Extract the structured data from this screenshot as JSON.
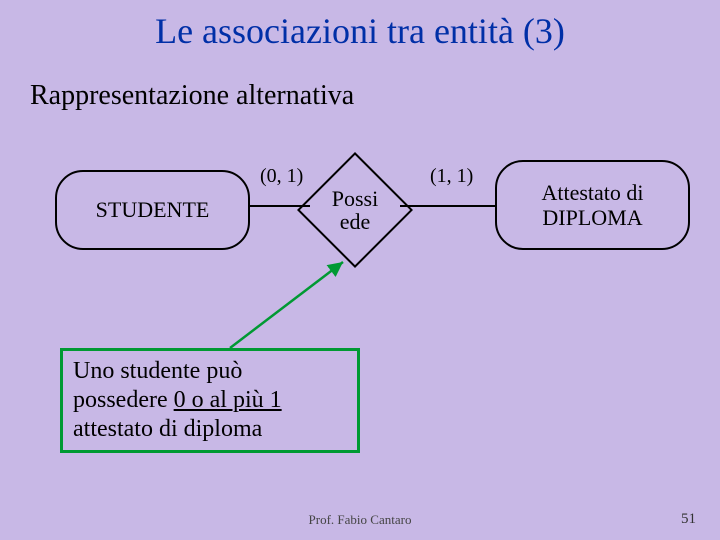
{
  "slide": {
    "background_color": "#c8b8e6",
    "title": "Le associazioni tra entità (3)",
    "title_color": "#002fa7",
    "subtitle": "Rappresentazione alternativa",
    "text_color": "#000000",
    "er": {
      "entity_left": {
        "label": "STUDENTE"
      },
      "entity_right": {
        "label": "Attestato di\nDIPLOMA"
      },
      "relationship": {
        "label": "Possi\nede"
      },
      "cardinality_left": "(0, 1)",
      "cardinality_right": "(1, 1)",
      "arrow_color": "#009933"
    },
    "note": {
      "border_color": "#009933",
      "lines": [
        "Uno studente può",
        "possedere ",
        "0 o al più 1",
        " attestato di diploma"
      ]
    },
    "footer": "Prof. Fabio Cantaro",
    "page_number": "51"
  }
}
